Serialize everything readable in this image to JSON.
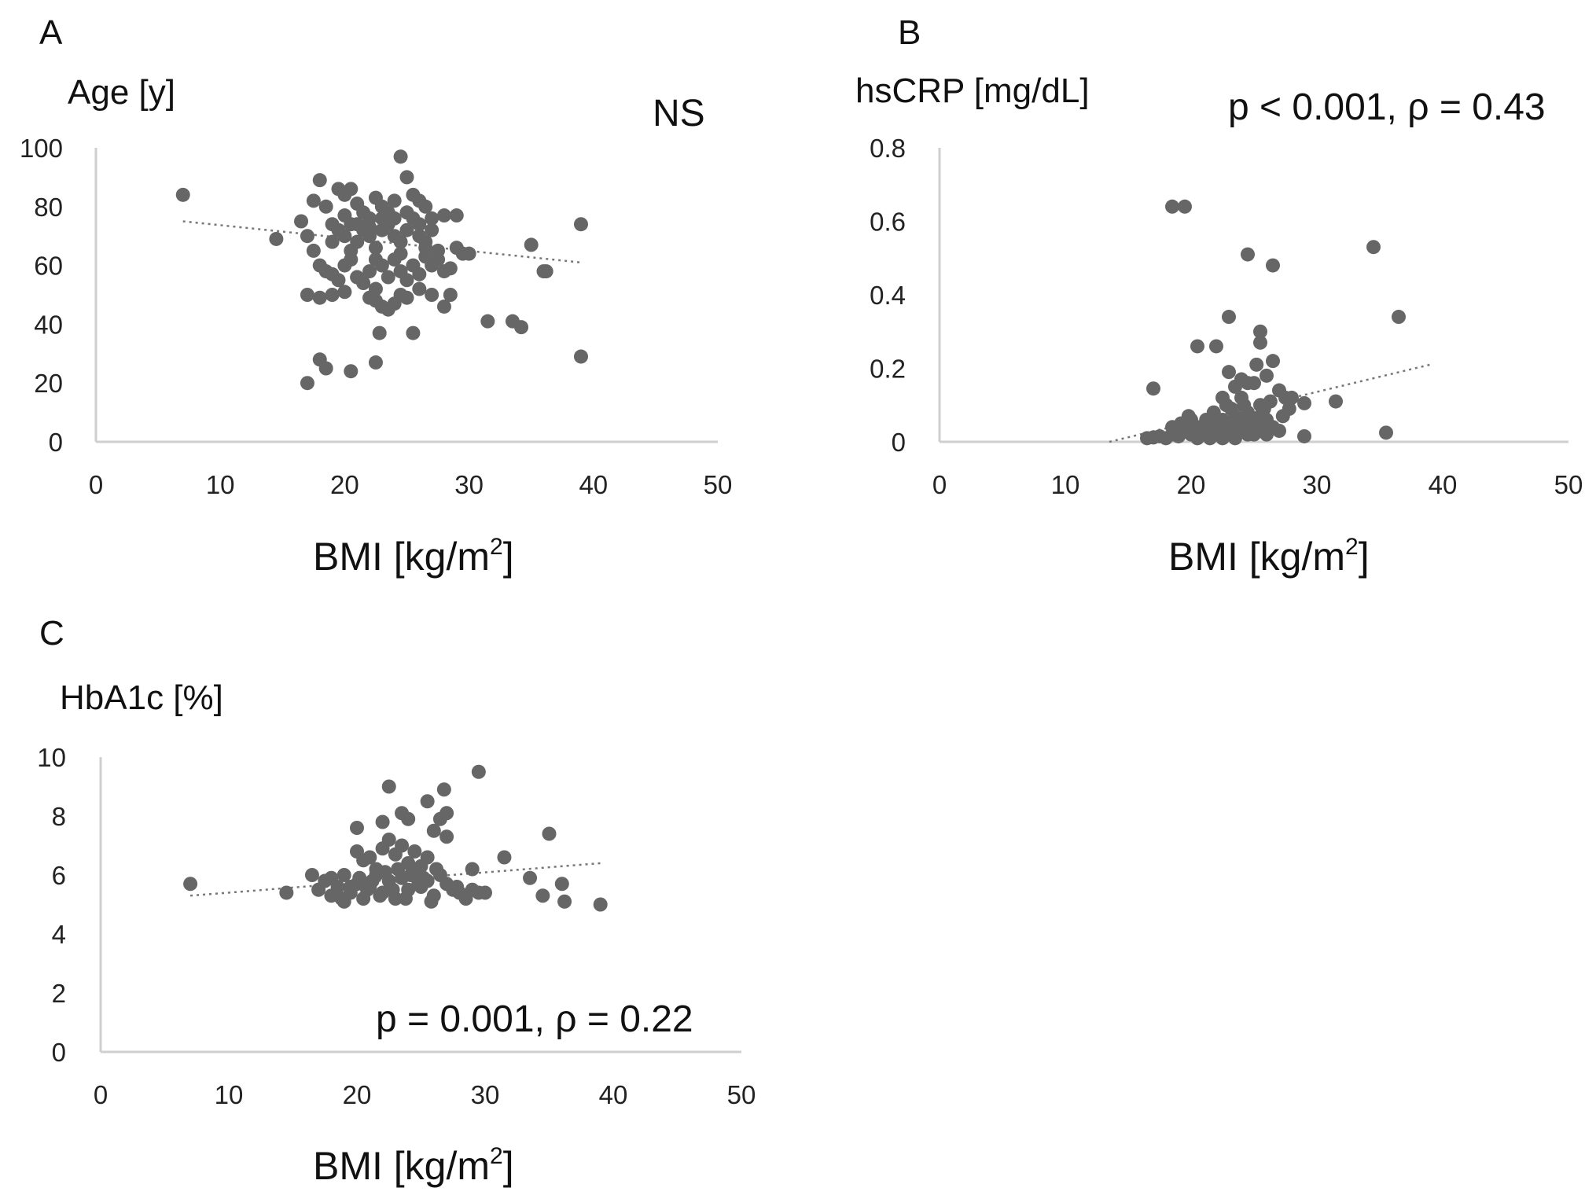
{
  "chart_data": [
    {
      "type": "scatter",
      "panel": "A",
      "ylabel": "Age [y]",
      "xlabel": "BMI [kg/m",
      "xlabel_sup": "2",
      "xlabel_end": "]",
      "annotation": "NS",
      "xlim": [
        0,
        50
      ],
      "ylim": [
        0,
        100
      ],
      "xticks": [
        "0",
        "10",
        "20",
        "30",
        "40",
        "50"
      ],
      "yticks": [
        "0",
        "20",
        "40",
        "60",
        "80",
        "100"
      ],
      "trendline": {
        "x": [
          7,
          39
        ],
        "y": [
          75,
          61
        ]
      },
      "points": [
        [
          7,
          84
        ],
        [
          14.5,
          69
        ],
        [
          16.5,
          75
        ],
        [
          17.5,
          82
        ],
        [
          18,
          89
        ],
        [
          18.5,
          80
        ],
        [
          19,
          74
        ],
        [
          19.5,
          86
        ],
        [
          20,
          84
        ],
        [
          20.5,
          86
        ],
        [
          21,
          81
        ],
        [
          21.5,
          78
        ],
        [
          22,
          76
        ],
        [
          22.5,
          83
        ],
        [
          23,
          80
        ],
        [
          23.5,
          78
        ],
        [
          24,
          82
        ],
        [
          24.5,
          97
        ],
        [
          25,
          90
        ],
        [
          25.5,
          84
        ],
        [
          26,
          82
        ],
        [
          26.5,
          80
        ],
        [
          27,
          76
        ],
        [
          28,
          77
        ],
        [
          29,
          77
        ],
        [
          17,
          70
        ],
        [
          17.5,
          65
        ],
        [
          18,
          60
        ],
        [
          18.5,
          58
        ],
        [
          19,
          57
        ],
        [
          19.5,
          55
        ],
        [
          20,
          60
        ],
        [
          20.5,
          62
        ],
        [
          21,
          56
        ],
        [
          21.5,
          54
        ],
        [
          22,
          58
        ],
        [
          22.5,
          52
        ],
        [
          23,
          60
        ],
        [
          23.5,
          56
        ],
        [
          24,
          62
        ],
        [
          24.5,
          58
        ],
        [
          25,
          55
        ],
        [
          25.5,
          60
        ],
        [
          26,
          57
        ],
        [
          26.5,
          63
        ],
        [
          27,
          60
        ],
        [
          27.5,
          62
        ],
        [
          28,
          58
        ],
        [
          28.5,
          59
        ],
        [
          17,
          50
        ],
        [
          18,
          49
        ],
        [
          19,
          50
        ],
        [
          20,
          51
        ],
        [
          21,
          56
        ],
        [
          22,
          49
        ],
        [
          22.5,
          48
        ],
        [
          23,
          46
        ],
        [
          23.5,
          45
        ],
        [
          24,
          47
        ],
        [
          24.5,
          50
        ],
        [
          25,
          49
        ],
        [
          26,
          52
        ],
        [
          27,
          50
        ],
        [
          28,
          46
        ],
        [
          28.5,
          50
        ],
        [
          29,
          66
        ],
        [
          29.5,
          64
        ],
        [
          30,
          64
        ],
        [
          19,
          68
        ],
        [
          19.5,
          72
        ],
        [
          20,
          70
        ],
        [
          20.5,
          74
        ],
        [
          21,
          68
        ],
        [
          21.5,
          72
        ],
        [
          22,
          70
        ],
        [
          22.5,
          66
        ],
        [
          23,
          72
        ],
        [
          23.5,
          74
        ],
        [
          24,
          70
        ],
        [
          24.5,
          68
        ],
        [
          25,
          72
        ],
        [
          25.5,
          76
        ],
        [
          26,
          70
        ],
        [
          26.5,
          68
        ],
        [
          27,
          72
        ],
        [
          27.5,
          65
        ],
        [
          20,
          77
        ],
        [
          21,
          74
        ],
        [
          22,
          73
        ],
        [
          23,
          76
        ],
        [
          24,
          76
        ],
        [
          25,
          78
        ],
        [
          26,
          74
        ],
        [
          20.5,
          65
        ],
        [
          22.5,
          62
        ],
        [
          24.5,
          64
        ],
        [
          26.5,
          66
        ],
        [
          17,
          20
        ],
        [
          18,
          28
        ],
        [
          18.5,
          25
        ],
        [
          20.5,
          24
        ],
        [
          22.5,
          27
        ],
        [
          22.8,
          37
        ],
        [
          25.5,
          37
        ],
        [
          31.5,
          41
        ],
        [
          33.5,
          41
        ],
        [
          34.2,
          39
        ],
        [
          35,
          67
        ],
        [
          36,
          58
        ],
        [
          36.2,
          58
        ],
        [
          39,
          74
        ],
        [
          39,
          29
        ]
      ]
    },
    {
      "type": "scatter",
      "panel": "B",
      "ylabel": "hsCRP [mg/dL]",
      "xlabel": "BMI [kg/m",
      "xlabel_sup": "2",
      "xlabel_end": "]",
      "annotation": "p < 0.001, ρ = 0.43",
      "xlim": [
        0,
        50
      ],
      "ylim": [
        0,
        0.8
      ],
      "xticks": [
        "0",
        "10",
        "20",
        "30",
        "40",
        "50"
      ],
      "yticks": [
        "0",
        "0.2",
        "0.4",
        "0.6",
        "0.8"
      ],
      "trendline": {
        "x": [
          13.5,
          39
        ],
        "y": [
          0,
          0.21
        ]
      },
      "points": [
        [
          18.5,
          0.64
        ],
        [
          19.5,
          0.64
        ],
        [
          24.5,
          0.51
        ],
        [
          26.5,
          0.48
        ],
        [
          34.5,
          0.53
        ],
        [
          36.5,
          0.34
        ],
        [
          23,
          0.34
        ],
        [
          20.5,
          0.26
        ],
        [
          22,
          0.26
        ],
        [
          25.5,
          0.3
        ],
        [
          25.5,
          0.27
        ],
        [
          25.2,
          0.21
        ],
        [
          26.5,
          0.22
        ],
        [
          17,
          0.145
        ],
        [
          23,
          0.19
        ],
        [
          24,
          0.17
        ],
        [
          24.5,
          0.16
        ],
        [
          23.5,
          0.15
        ],
        [
          25,
          0.16
        ],
        [
          26,
          0.18
        ],
        [
          27,
          0.14
        ],
        [
          27.5,
          0.12
        ],
        [
          28,
          0.12
        ],
        [
          22.5,
          0.12
        ],
        [
          24,
          0.12
        ],
        [
          25.5,
          0.1
        ],
        [
          29,
          0.105
        ],
        [
          31.5,
          0.11
        ],
        [
          27.8,
          0.09
        ],
        [
          35.5,
          0.025
        ],
        [
          29,
          0.015
        ],
        [
          16.5,
          0.01
        ],
        [
          17,
          0.012
        ],
        [
          17.5,
          0.015
        ],
        [
          18,
          0.01
        ],
        [
          18.5,
          0.02
        ],
        [
          19,
          0.015
        ],
        [
          19.5,
          0.03
        ],
        [
          20,
          0.02
        ],
        [
          20.5,
          0.04
        ],
        [
          21,
          0.03
        ],
        [
          21.5,
          0.05
        ],
        [
          22,
          0.04
        ],
        [
          22.5,
          0.06
        ],
        [
          23,
          0.05
        ],
        [
          23.5,
          0.07
        ],
        [
          24,
          0.06
        ],
        [
          24.5,
          0.08
        ],
        [
          25,
          0.05
        ],
        [
          25.5,
          0.07
        ],
        [
          26,
          0.06
        ],
        [
          26.5,
          0.04
        ],
        [
          27,
          0.03
        ],
        [
          19.2,
          0.05
        ],
        [
          20,
          0.06
        ],
        [
          21,
          0.02
        ],
        [
          22,
          0.02
        ],
        [
          23,
          0.03
        ],
        [
          24,
          0.04
        ],
        [
          25,
          0.02
        ],
        [
          26,
          0.02
        ],
        [
          20.5,
          0.01
        ],
        [
          21.5,
          0.01
        ],
        [
          22.5,
          0.01
        ],
        [
          23.5,
          0.01
        ],
        [
          24.5,
          0.02
        ],
        [
          25.5,
          0.03
        ],
        [
          18.5,
          0.04
        ],
        [
          19.8,
          0.07
        ],
        [
          21.8,
          0.08
        ],
        [
          23.2,
          0.09
        ],
        [
          24.2,
          0.1
        ],
        [
          25.8,
          0.09
        ],
        [
          26.3,
          0.11
        ],
        [
          27.3,
          0.07
        ],
        [
          22.8,
          0.1
        ],
        [
          21.2,
          0.06
        ]
      ]
    },
    {
      "type": "scatter",
      "panel": "C",
      "ylabel": "HbA1c [%]",
      "xlabel": "BMI [kg/m",
      "xlabel_sup": "2",
      "xlabel_end": "]",
      "annotation": "p = 0.001, ρ = 0.22",
      "xlim": [
        0,
        50
      ],
      "ylim": [
        0,
        10
      ],
      "xticks": [
        "0",
        "10",
        "20",
        "30",
        "40",
        "50"
      ],
      "yticks": [
        "0",
        "2",
        "4",
        "6",
        "8",
        "10"
      ],
      "trendline": {
        "x": [
          7,
          39
        ],
        "y": [
          5.3,
          6.4
        ]
      },
      "points": [
        [
          7,
          5.7
        ],
        [
          14.5,
          5.4
        ],
        [
          16.5,
          6.0
        ],
        [
          17,
          5.5
        ],
        [
          17.5,
          5.8
        ],
        [
          18,
          5.3
        ],
        [
          18.5,
          5.6
        ],
        [
          19,
          5.1
        ],
        [
          19.5,
          5.4
        ],
        [
          20,
          5.7
        ],
        [
          20.5,
          5.2
        ],
        [
          21,
          5.6
        ],
        [
          21.5,
          6.0
        ],
        [
          22,
          5.4
        ],
        [
          22.5,
          5.8
        ],
        [
          23,
          5.2
        ],
        [
          23.5,
          5.9
        ],
        [
          24,
          5.5
        ],
        [
          24.5,
          6.1
        ],
        [
          25,
          5.6
        ],
        [
          25.5,
          5.8
        ],
        [
          26,
          5.3
        ],
        [
          26.5,
          6.0
        ],
        [
          27,
          5.7
        ],
        [
          27.5,
          5.5
        ],
        [
          28,
          5.4
        ],
        [
          28.5,
          5.2
        ],
        [
          29,
          5.5
        ],
        [
          29.5,
          5.4
        ],
        [
          30,
          5.4
        ],
        [
          20,
          6.8
        ],
        [
          20.5,
          6.5
        ],
        [
          21,
          6.6
        ],
        [
          21.5,
          6.2
        ],
        [
          22,
          6.9
        ],
        [
          22.5,
          7.2
        ],
        [
          23,
          6.7
        ],
        [
          23.5,
          7.0
        ],
        [
          24,
          6.4
        ],
        [
          24.5,
          6.8
        ],
        [
          25,
          6.3
        ],
        [
          25.5,
          6.6
        ],
        [
          26,
          7.5
        ],
        [
          26.5,
          7.9
        ],
        [
          27,
          8.1
        ],
        [
          27,
          7.3
        ],
        [
          26.8,
          8.9
        ],
        [
          24,
          7.9
        ],
        [
          20,
          7.6
        ],
        [
          22,
          7.8
        ],
        [
          23.5,
          8.1
        ],
        [
          25.5,
          8.5
        ],
        [
          22.5,
          9.0
        ],
        [
          29.5,
          9.5
        ],
        [
          29,
          6.2
        ],
        [
          31.5,
          6.6
        ],
        [
          33.5,
          5.9
        ],
        [
          34.5,
          5.3
        ],
        [
          35,
          7.4
        ],
        [
          36,
          5.7
        ],
        [
          36.2,
          5.1
        ],
        [
          39,
          5.0
        ],
        [
          18,
          5.9
        ],
        [
          19,
          6.0
        ],
        [
          20.2,
          5.9
        ],
        [
          21.2,
          5.8
        ],
        [
          22.2,
          6.1
        ],
        [
          23.2,
          6.2
        ],
        [
          24.2,
          6.0
        ],
        [
          25.2,
          5.9
        ],
        [
          26.2,
          6.2
        ],
        [
          19.5,
          5.6
        ],
        [
          21.8,
          5.3
        ],
        [
          23.8,
          5.2
        ],
        [
          25.8,
          5.1
        ],
        [
          22.8,
          5.5
        ],
        [
          24.8,
          5.7
        ],
        [
          20.8,
          5.5
        ],
        [
          18.8,
          5.2
        ],
        [
          27.8,
          5.6
        ]
      ]
    }
  ]
}
